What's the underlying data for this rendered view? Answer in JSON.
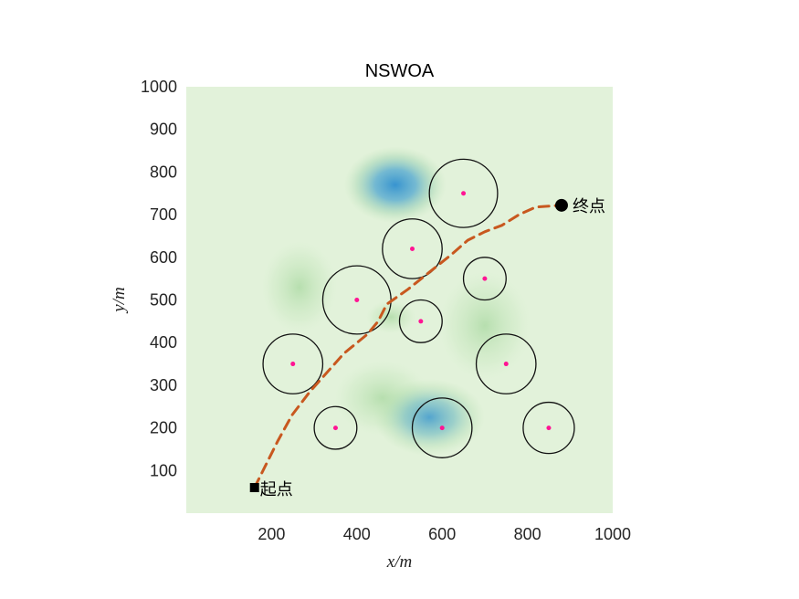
{
  "chart_data": {
    "type": "scatter",
    "title": "NSWOA",
    "xlabel": "x/m",
    "ylabel": "y/m",
    "xlim": [
      0,
      1000
    ],
    "ylim": [
      0,
      1000
    ],
    "xticks": [
      200,
      400,
      600,
      800,
      1000
    ],
    "yticks": [
      100,
      200,
      300,
      400,
      500,
      600,
      700,
      800,
      900,
      1000
    ],
    "grid": false,
    "background": "terrain heatmap (light green to blue)",
    "obstacles": [
      {
        "x": 650,
        "y": 750,
        "r": 80
      },
      {
        "x": 530,
        "y": 620,
        "r": 70
      },
      {
        "x": 700,
        "y": 550,
        "r": 50
      },
      {
        "x": 400,
        "y": 500,
        "r": 80
      },
      {
        "x": 550,
        "y": 450,
        "r": 50
      },
      {
        "x": 250,
        "y": 350,
        "r": 70
      },
      {
        "x": 750,
        "y": 350,
        "r": 70
      },
      {
        "x": 350,
        "y": 200,
        "r": 50
      },
      {
        "x": 600,
        "y": 200,
        "r": 70
      },
      {
        "x": 850,
        "y": 200,
        "r": 60
      }
    ],
    "path": [
      [
        160,
        60
      ],
      [
        185,
        110
      ],
      [
        215,
        170
      ],
      [
        248,
        230
      ],
      [
        290,
        285
      ],
      [
        330,
        330
      ],
      [
        370,
        375
      ],
      [
        425,
        420
      ],
      [
        450,
        450
      ],
      [
        470,
        490
      ],
      [
        520,
        525
      ],
      [
        570,
        565
      ],
      [
        620,
        605
      ],
      [
        660,
        640
      ],
      [
        700,
        660
      ],
      [
        740,
        675
      ],
      [
        780,
        700
      ],
      [
        820,
        718
      ],
      [
        850,
        720
      ],
      [
        880,
        722
      ]
    ],
    "start": {
      "x": 160,
      "y": 60,
      "label": "起点"
    },
    "end": {
      "x": 880,
      "y": 722,
      "label": "终点"
    },
    "colors": {
      "path": "#c8581f",
      "obstacle": "#111111",
      "center": "#ff1493",
      "low": "#e4f3dc",
      "high": "#2f8fcf"
    }
  }
}
